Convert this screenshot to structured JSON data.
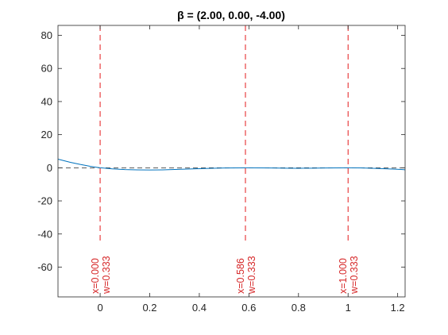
{
  "chart_data": {
    "type": "line",
    "title": "β = (2.00, 0.00, -4.00)",
    "xlabel": "",
    "ylabel": "",
    "xlim": [
      -0.17,
      1.23
    ],
    "ylim": [
      -78,
      86
    ],
    "x_ticks": [
      0,
      0.2,
      0.4,
      0.6,
      0.8,
      1,
      1.2
    ],
    "x_tick_labels": [
      "0",
      "0.2",
      "0.4",
      "0.6",
      "0.8",
      "1",
      "1.2"
    ],
    "y_ticks": [
      -60,
      -40,
      -20,
      0,
      20,
      40,
      60,
      80
    ],
    "y_tick_labels": [
      "-60",
      "-40",
      "-20",
      "0",
      "20",
      "40",
      "60",
      "80"
    ],
    "grid": false,
    "series": [
      {
        "color": "#0072bd",
        "x": [
          -0.17,
          -0.12,
          -0.08,
          -0.04,
          0.0,
          0.05,
          0.1,
          0.15,
          0.2,
          0.25,
          0.3,
          0.35,
          0.4,
          0.45,
          0.5,
          0.55,
          0.586,
          0.65,
          0.7,
          0.75,
          0.8,
          0.85,
          0.9,
          0.95,
          1.0,
          1.05,
          1.1,
          1.15,
          1.2,
          1.23
        ],
        "y": [
          5.2,
          3.3,
          2.0,
          0.9,
          0.0,
          -0.7,
          -1.1,
          -1.3,
          -1.35,
          -1.25,
          -1.05,
          -0.8,
          -0.55,
          -0.3,
          -0.15,
          -0.05,
          0.0,
          -0.05,
          -0.15,
          -0.25,
          -0.3,
          -0.25,
          -0.15,
          -0.05,
          0.0,
          -0.1,
          -0.3,
          -0.6,
          -0.9,
          -1.2
        ]
      }
    ],
    "reference_lines": {
      "horizontal_zero": {
        "y": 0,
        "color": "#262626",
        "style": "dashed"
      },
      "vertical": [
        {
          "x": 0.0,
          "label_x": "x=0.000",
          "label_w": "w=0.333",
          "color": "#e41a1c"
        },
        {
          "x": 0.586,
          "label_x": "x=0.586",
          "label_w": "w=0.333",
          "color": "#e41a1c"
        },
        {
          "x": 1.0,
          "label_x": "x=1.000",
          "label_w": "w=0.333",
          "color": "#e41a1c"
        }
      ]
    }
  }
}
